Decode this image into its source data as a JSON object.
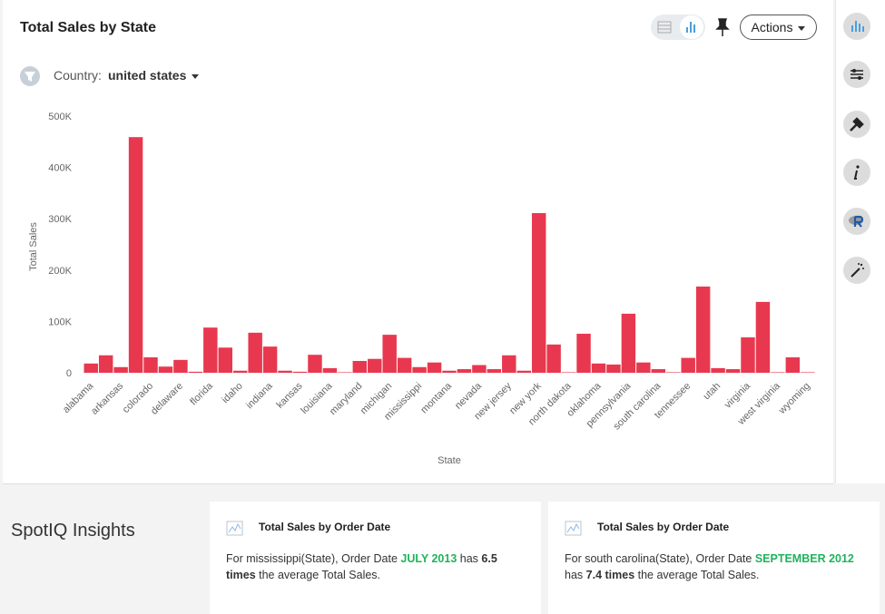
{
  "chart_data": {
    "type": "bar",
    "title": "Total Sales by State",
    "x_label": "State",
    "y_label": "Total Sales",
    "color": "#e8384f",
    "categories": [
      "alabama",
      null,
      "arkansas",
      null,
      "colorado",
      null,
      "delaware",
      null,
      "florida",
      null,
      "idaho",
      null,
      "indiana",
      null,
      "kansas",
      null,
      "louisiana",
      null,
      "maryland",
      null,
      "michigan",
      null,
      "mississippi",
      null,
      "montana",
      null,
      "nevada",
      null,
      "new jersey",
      null,
      "new york",
      null,
      "north dakota",
      null,
      "oklahoma",
      null,
      "pennsylvania",
      null,
      "south carolina",
      null,
      "tennessee",
      null,
      "utah",
      null,
      "virginia",
      null,
      "west virginia",
      null,
      "wyoming"
    ],
    "values": [
      18000,
      34000,
      11000,
      459000,
      30000,
      12000,
      25000,
      2000,
      88000,
      49000,
      4000,
      78000,
      51000,
      4000,
      2000,
      35000,
      9000,
      1000,
      23000,
      27000,
      74000,
      29000,
      11000,
      20000,
      4000,
      7000,
      15000,
      7000,
      34000,
      4000,
      311000,
      55000,
      1000,
      76000,
      18000,
      16000,
      115000,
      20000,
      7000,
      1000,
      29000,
      168000,
      9000,
      7000,
      69000,
      138000,
      1000,
      30000,
      1000
    ],
    "ylim": [
      0,
      500000
    ],
    "yticks": [
      0,
      {
        "value": 100000,
        "label": "100K"
      },
      {
        "value": 200000,
        "label": "200K"
      },
      {
        "value": 300000,
        "label": "300K"
      },
      {
        "value": 400000,
        "label": "400K"
      },
      {
        "value": 500000,
        "label": "500K"
      }
    ],
    "grid": false
  },
  "filter": {
    "label": "Country:",
    "value": "united states"
  },
  "actions_label": "Actions",
  "insights": {
    "title": "SpotIQ Insights",
    "cards": [
      {
        "title": "Total Sales by Order Date",
        "segments": [
          {
            "text": "For mississippi(State), Order Date ",
            "style": "plain"
          },
          {
            "text": "JULY 2013",
            "style": "green"
          },
          {
            "text": " has ",
            "style": "plain"
          },
          {
            "text": "6.5 times",
            "style": "bold"
          },
          {
            "text": " the average Total Sales.",
            "style": "plain"
          }
        ]
      },
      {
        "title": "Total Sales by Order Date",
        "segments": [
          {
            "text": "For south carolina(State), Order Date ",
            "style": "plain"
          },
          {
            "text": "SEPTEMBER 2012",
            "style": "green"
          },
          {
            "text": " has ",
            "style": "plain"
          },
          {
            "text": "7.4 times",
            "style": "bold"
          },
          {
            "text": " the average Total Sales.",
            "style": "plain"
          }
        ]
      }
    ]
  }
}
